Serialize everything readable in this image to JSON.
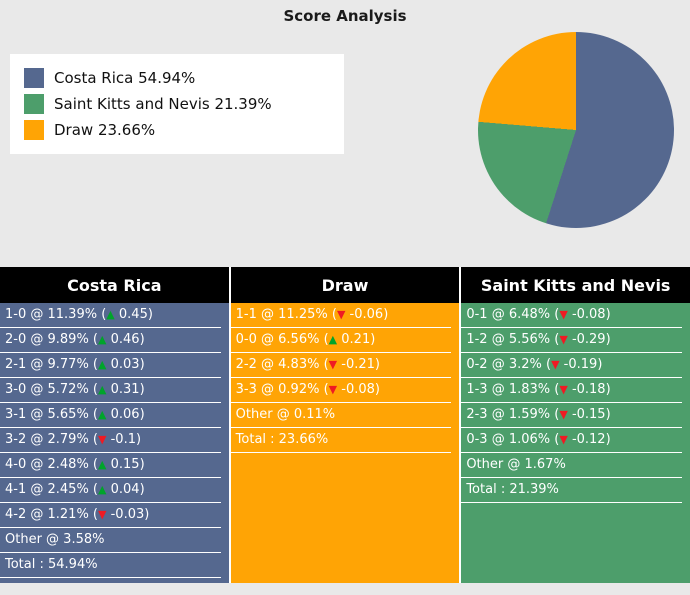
{
  "title": "Score Analysis",
  "legend": {
    "items": [
      {
        "label": "Costa Rica 54.94%",
        "color": "#55688f"
      },
      {
        "label": "Saint Kitts and Nevis 21.39%",
        "color": "#4d9e6b"
      },
      {
        "label": "Draw 23.66%",
        "color": "#ffa405"
      }
    ]
  },
  "chart_data": {
    "type": "pie",
    "title": "Score Analysis",
    "labels": [
      "Costa Rica",
      "Saint Kitts and Nevis",
      "Draw"
    ],
    "values": [
      54.94,
      21.39,
      23.66
    ],
    "colors": [
      "#55688f",
      "#4d9e6b",
      "#ffa405"
    ],
    "start_angle_deg": 0,
    "direction": "clockwise",
    "legend_position": "left"
  },
  "arrow_colors": {
    "up": "#00a42a",
    "down": "#ef1a23"
  },
  "columns": [
    {
      "header": "Costa Rica",
      "color": "#55688f",
      "rows": [
        {
          "text": "1-0 @ 11.39%",
          "dir": "up",
          "delta": "0.45"
        },
        {
          "text": "2-0 @ 9.89%",
          "dir": "up",
          "delta": "0.46"
        },
        {
          "text": "2-1 @ 9.77%",
          "dir": "up",
          "delta": "0.03"
        },
        {
          "text": "3-0 @ 5.72%",
          "dir": "up",
          "delta": "0.31"
        },
        {
          "text": "3-1 @ 5.65%",
          "dir": "up",
          "delta": "0.06"
        },
        {
          "text": "3-2 @ 2.79%",
          "dir": "down",
          "delta": "-0.1"
        },
        {
          "text": "4-0 @ 2.48%",
          "dir": "up",
          "delta": "0.15"
        },
        {
          "text": "4-1 @ 2.45%",
          "dir": "up",
          "delta": "0.04"
        },
        {
          "text": "4-2 @ 1.21%",
          "dir": "down",
          "delta": "-0.03"
        },
        {
          "text": "Other @ 3.58%"
        },
        {
          "text": "Total : 54.94%"
        }
      ]
    },
    {
      "header": "Draw",
      "color": "#ffa405",
      "rows": [
        {
          "text": "1-1 @ 11.25%",
          "dir": "down",
          "delta": "-0.06"
        },
        {
          "text": "0-0 @ 6.56%",
          "dir": "up",
          "delta": "0.21"
        },
        {
          "text": "2-2 @ 4.83%",
          "dir": "down",
          "delta": "-0.21"
        },
        {
          "text": "3-3 @ 0.92%",
          "dir": "down",
          "delta": "-0.08"
        },
        {
          "text": "Other @ 0.11%"
        },
        {
          "text": "Total : 23.66%"
        }
      ]
    },
    {
      "header": "Saint Kitts and Nevis",
      "color": "#4d9e6b",
      "rows": [
        {
          "text": "0-1 @ 6.48%",
          "dir": "down",
          "delta": "-0.08"
        },
        {
          "text": "1-2 @ 5.56%",
          "dir": "down",
          "delta": "-0.29"
        },
        {
          "text": "0-2 @ 3.2%",
          "dir": "down",
          "delta": "-0.19"
        },
        {
          "text": "1-3 @ 1.83%",
          "dir": "down",
          "delta": "-0.18"
        },
        {
          "text": "2-3 @ 1.59%",
          "dir": "down",
          "delta": "-0.15"
        },
        {
          "text": "0-3 @ 1.06%",
          "dir": "down",
          "delta": "-0.12"
        },
        {
          "text": "Other @ 1.67%"
        },
        {
          "text": "Total : 21.39%"
        }
      ]
    }
  ]
}
